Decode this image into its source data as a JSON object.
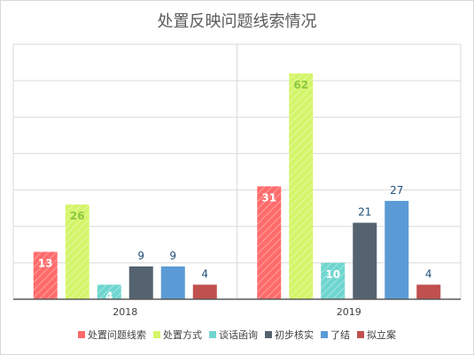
{
  "chart_data": {
    "type": "bar",
    "title": "处置反映问题线索情况",
    "categories": [
      "2018",
      "2019"
    ],
    "ylim": [
      0,
      70
    ],
    "grid": true,
    "legend_position": "bottom",
    "series": [
      {
        "name": "处置问题线索",
        "values": [
          13,
          31
        ],
        "color": "#ff6b6b",
        "label_color": "#ffffff",
        "label_inside": true,
        "hatched": true
      },
      {
        "name": "处置方式",
        "values": [
          26,
          62
        ],
        "color": "#d4f56a",
        "label_color": "#8cc63f",
        "label_inside": true,
        "hatched": true
      },
      {
        "name": "谈话函询",
        "values": [
          4,
          10
        ],
        "color": "#6fd6cf",
        "label_color": "#ffffff",
        "label_inside": true,
        "hatched": true
      },
      {
        "name": "初步核实",
        "values": [
          9,
          21
        ],
        "color": "#556270",
        "label_color": "#1f4e79",
        "label_inside": false,
        "hatched": false
      },
      {
        "name": "了结",
        "values": [
          9,
          27
        ],
        "color": "#5b9bd5",
        "label_color": "#1f4e79",
        "label_inside": false,
        "hatched": false
      },
      {
        "name": "拟立案",
        "values": [
          4,
          4
        ],
        "color": "#c0504d",
        "label_color": "#1f4e79",
        "label_inside": false,
        "hatched": false
      }
    ]
  }
}
